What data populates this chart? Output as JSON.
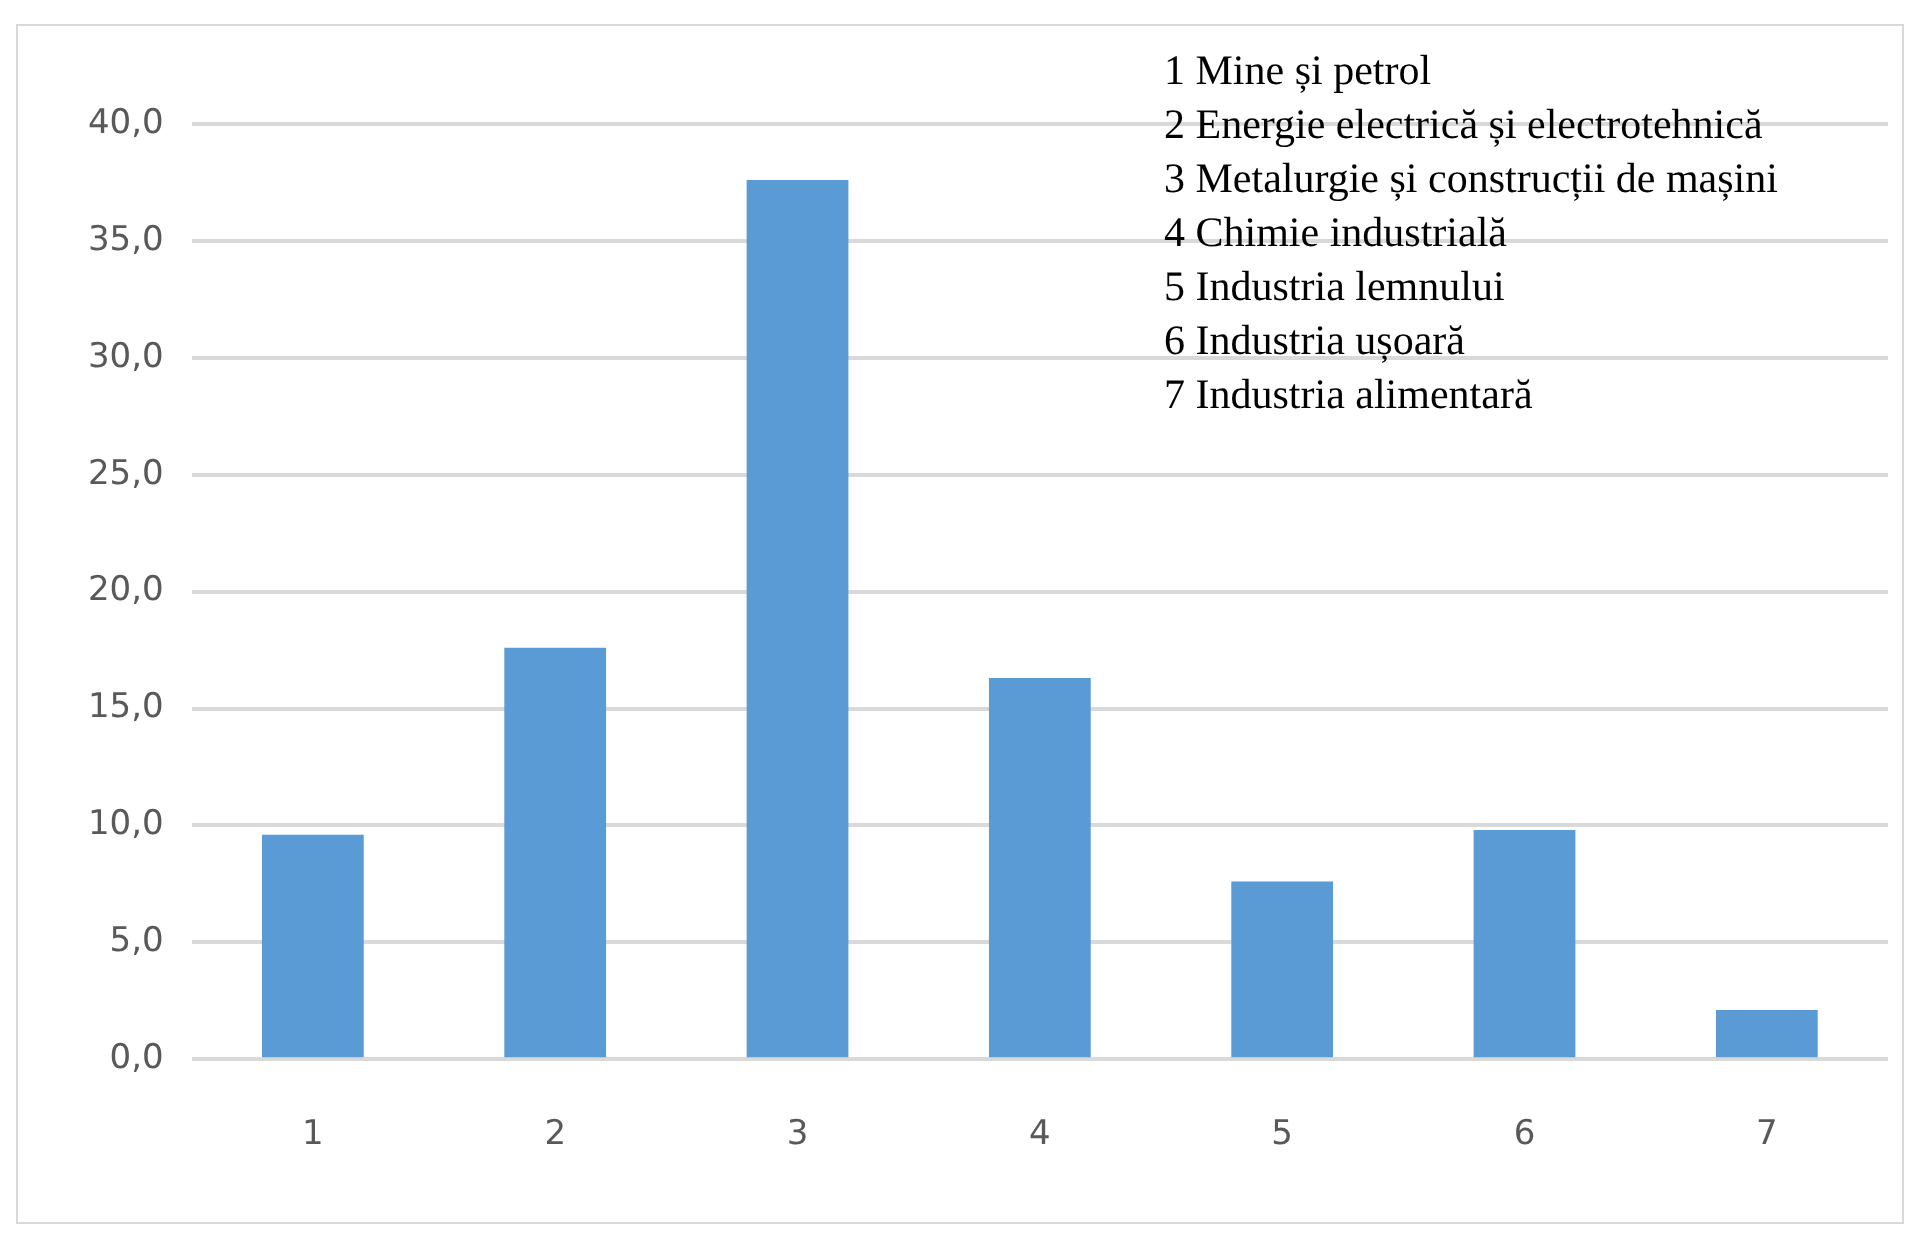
{
  "chart_data": {
    "type": "bar",
    "categories": [
      "1",
      "2",
      "3",
      "4",
      "5",
      "6",
      "7"
    ],
    "values": [
      9.6,
      17.6,
      37.6,
      16.3,
      7.6,
      9.8,
      2.1
    ],
    "color": "#5b9bd5",
    "ylim": [
      0,
      40
    ],
    "yticks": [
      {
        "value": 0,
        "label": "0,0"
      },
      {
        "value": 5,
        "label": "5,0"
      },
      {
        "value": 10,
        "label": "10,0"
      },
      {
        "value": 15,
        "label": "15,0"
      },
      {
        "value": 20,
        "label": "20,0"
      },
      {
        "value": 25,
        "label": "25,0"
      },
      {
        "value": 30,
        "label": "30,0"
      },
      {
        "value": 35,
        "label": "35,0"
      },
      {
        "value": 40,
        "label": "40,0"
      }
    ],
    "grid": "y",
    "legend": false,
    "annotations": [
      "1 Mine și petrol",
      "2 Energie electrică și electrotehnică",
      "3 Metalurgie și construcții de mașini",
      "4 Chimie industrială",
      "5 Industria lemnului",
      "6 Industria ușoară",
      "7 Industria alimentară"
    ]
  }
}
